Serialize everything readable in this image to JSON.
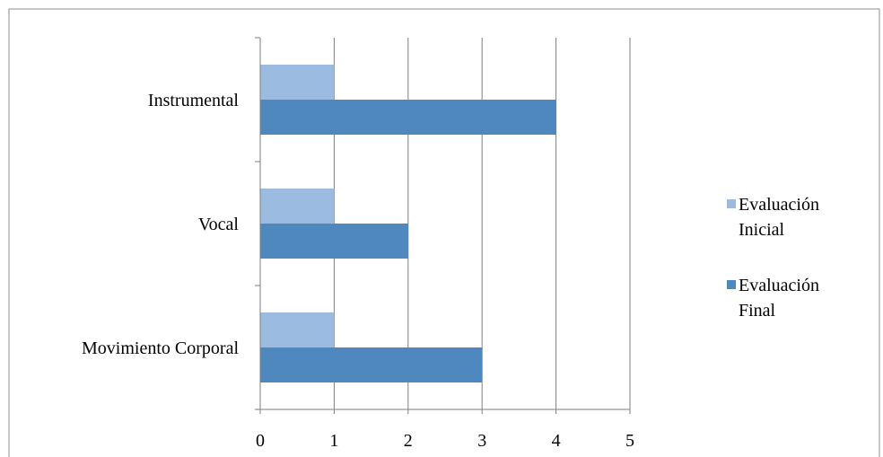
{
  "chart_data": {
    "type": "bar",
    "orientation": "horizontal",
    "categories": [
      "Instrumental",
      "Vocal",
      "Movimiento Corporal"
    ],
    "series": [
      {
        "name": "Evaluación Inicial",
        "values": [
          1,
          1,
          1
        ],
        "color": "#9bbbe0"
      },
      {
        "name": "Evaluación Final",
        "values": [
          4,
          2,
          3
        ],
        "color": "#4f87bf"
      }
    ],
    "xlim": [
      0,
      5
    ],
    "xticks": [
      "0",
      "1",
      "2",
      "3",
      "4",
      "5"
    ],
    "grid": true,
    "legend_position": "right",
    "legend": [
      {
        "lines": [
          "Evaluación",
          "Inicial"
        ]
      },
      {
        "lines": [
          "Evaluación",
          "Final"
        ]
      }
    ]
  }
}
